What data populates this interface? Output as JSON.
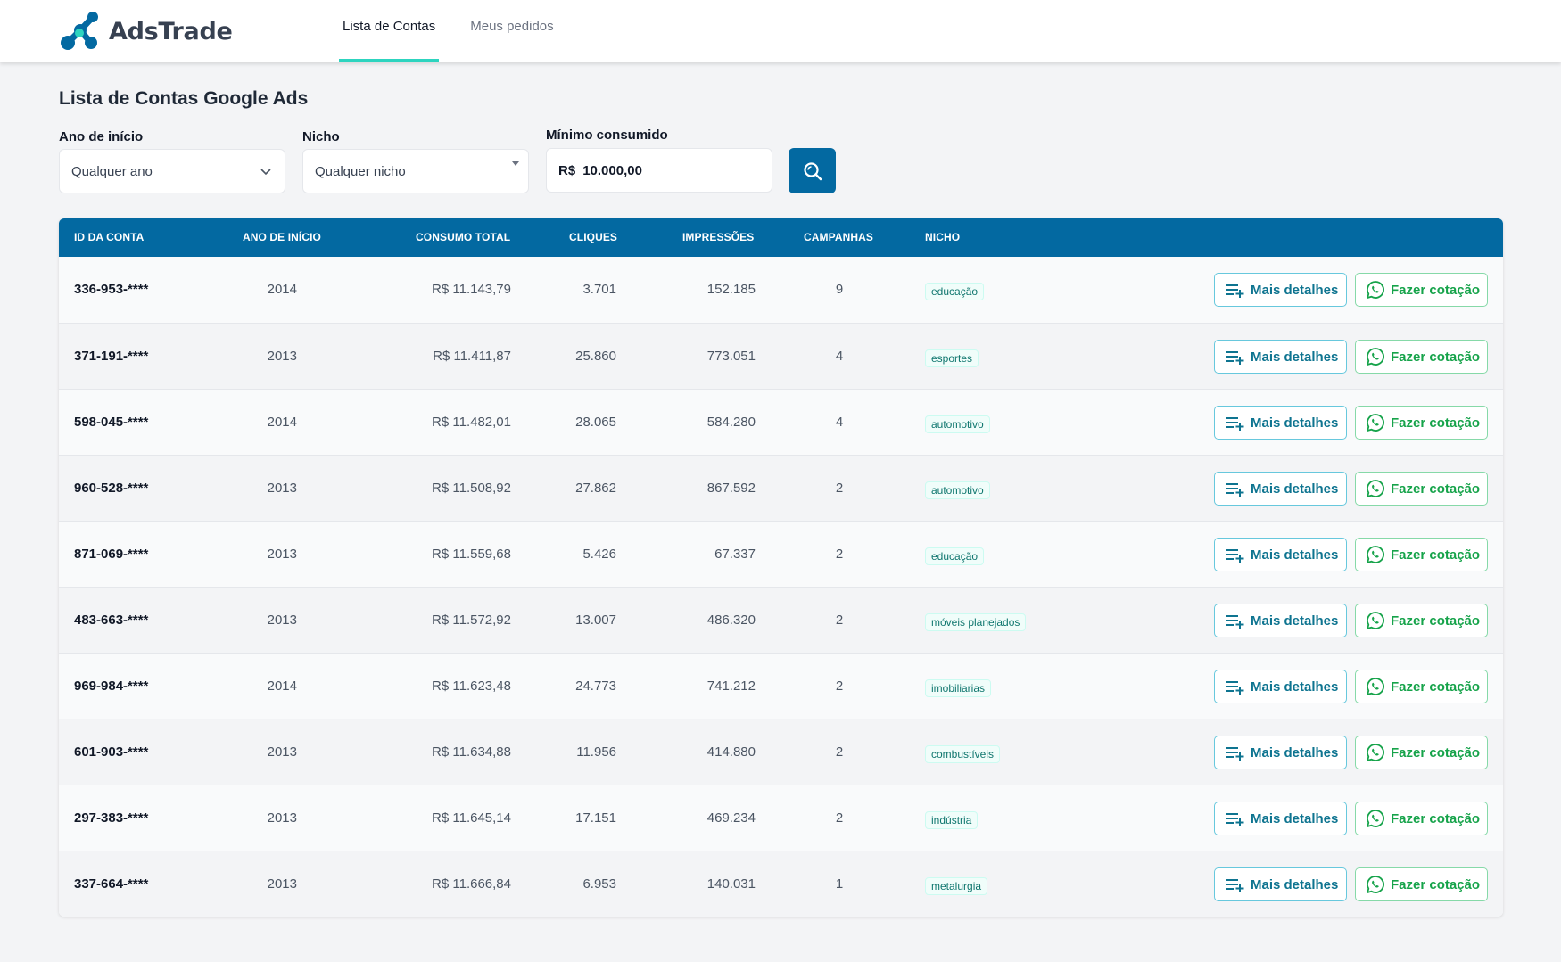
{
  "header": {
    "logo_text": "AdsTrade",
    "tabs": [
      {
        "label": "Lista de Contas",
        "active": true
      },
      {
        "label": "Meus pedidos",
        "active": false
      }
    ]
  },
  "page": {
    "title": "Lista de Contas Google Ads"
  },
  "filters": {
    "year": {
      "label": "Ano de início",
      "value": "Qualquer ano"
    },
    "niche": {
      "label": "Nicho",
      "value": "Qualquer nicho"
    },
    "min": {
      "label": "Mínimo consumido",
      "currency": "R$",
      "value": "10.000,00"
    }
  },
  "table": {
    "headers": {
      "id": "ID DA CONTA",
      "year": "ANO DE INÍCIO",
      "total": "CONSUMO TOTAL",
      "clicks": "CLIQUES",
      "impressions": "IMPRESSÕES",
      "campaigns": "CAMPANHAS",
      "niche": "NICHO"
    },
    "actions": {
      "details": "Mais detalhes",
      "quote": "Fazer cotação"
    },
    "rows": [
      {
        "id": "336-953-****",
        "year": "2014",
        "total": "R$ 11.143,79",
        "clicks": "3.701",
        "impressions": "152.185",
        "campaigns": "9",
        "niche": "educação"
      },
      {
        "id": "371-191-****",
        "year": "2013",
        "total": "R$ 11.411,87",
        "clicks": "25.860",
        "impressions": "773.051",
        "campaigns": "4",
        "niche": "esportes"
      },
      {
        "id": "598-045-****",
        "year": "2014",
        "total": "R$ 11.482,01",
        "clicks": "28.065",
        "impressions": "584.280",
        "campaigns": "4",
        "niche": "automotivo"
      },
      {
        "id": "960-528-****",
        "year": "2013",
        "total": "R$ 11.508,92",
        "clicks": "27.862",
        "impressions": "867.592",
        "campaigns": "2",
        "niche": "automotivo"
      },
      {
        "id": "871-069-****",
        "year": "2013",
        "total": "R$ 11.559,68",
        "clicks": "5.426",
        "impressions": "67.337",
        "campaigns": "2",
        "niche": "educação"
      },
      {
        "id": "483-663-****",
        "year": "2013",
        "total": "R$ 11.572,92",
        "clicks": "13.007",
        "impressions": "486.320",
        "campaigns": "2",
        "niche": "móveis planejados"
      },
      {
        "id": "969-984-****",
        "year": "2014",
        "total": "R$ 11.623,48",
        "clicks": "24.773",
        "impressions": "741.212",
        "campaigns": "2",
        "niche": "imobiliarias"
      },
      {
        "id": "601-903-****",
        "year": "2013",
        "total": "R$ 11.634,88",
        "clicks": "11.956",
        "impressions": "414.880",
        "campaigns": "2",
        "niche": "combustíveis"
      },
      {
        "id": "297-383-****",
        "year": "2013",
        "total": "R$ 11.645,14",
        "clicks": "17.151",
        "impressions": "469.234",
        "campaigns": "2",
        "niche": "indústria"
      },
      {
        "id": "337-664-****",
        "year": "2013",
        "total": "R$ 11.666,84",
        "clicks": "6.953",
        "impressions": "140.031",
        "campaigns": "1",
        "niche": "metalurgia"
      }
    ]
  },
  "colors": {
    "primary": "#0369a1",
    "accent": "#2dd4bf",
    "details": "#0e7490",
    "quote": "#16a34a"
  },
  "icons": {
    "details": "playlist-add-icon",
    "quote": "whatsapp-icon",
    "search": "search-icon"
  }
}
